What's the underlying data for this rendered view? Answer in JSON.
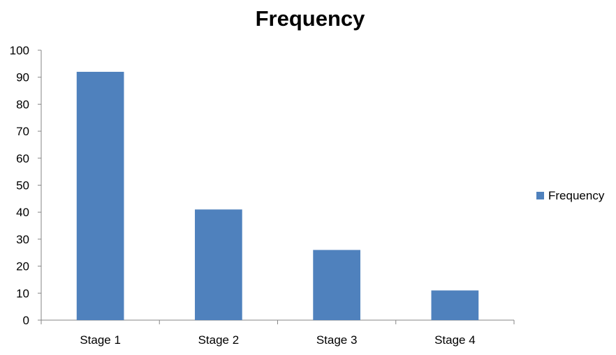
{
  "chart_data": {
    "type": "bar",
    "title": "Frequency",
    "xlabel": "",
    "ylabel": "",
    "categories": [
      "Stage 1",
      "Stage 2",
      "Stage 3",
      "Stage 4"
    ],
    "series": [
      {
        "name": "Frequency",
        "values": [
          92,
          41,
          26,
          11
        ],
        "color": "#4F81BD"
      }
    ],
    "ylim": [
      0,
      100
    ],
    "yticks": [
      "0",
      "10",
      "20",
      "30",
      "40",
      "50",
      "60",
      "70",
      "80",
      "90",
      "100"
    ],
    "grid": false,
    "legend": "right"
  }
}
